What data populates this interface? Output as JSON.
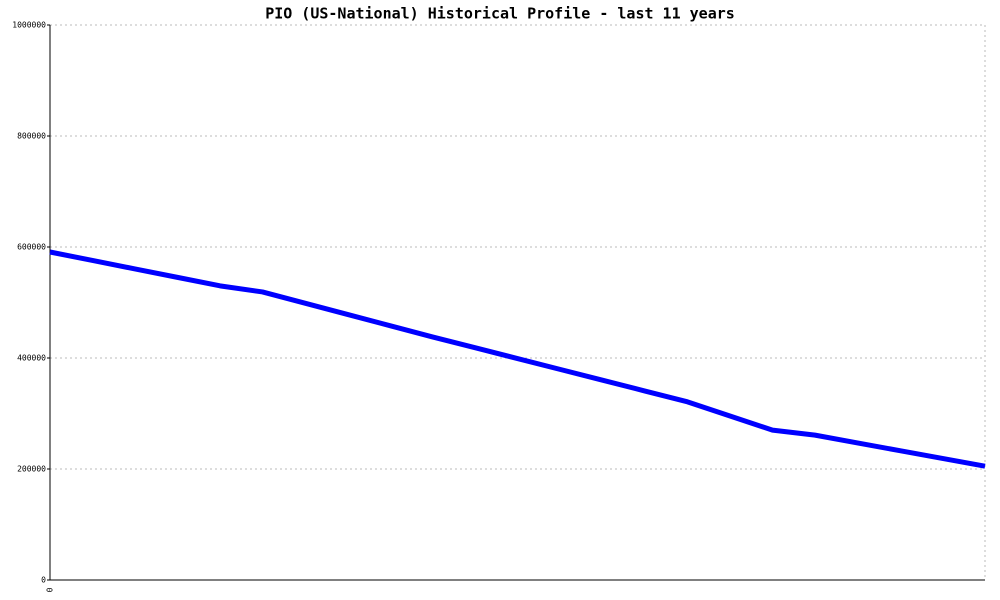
{
  "chart_data": {
    "type": "line",
    "title": "PIO (US-National) Historical Profile - last 11 years",
    "categories": [
      "0",
      null,
      null,
      null,
      null,
      null,
      null,
      null,
      null,
      null,
      null,
      null,
      null,
      null,
      null,
      null,
      null,
      null,
      null,
      null,
      null,
      null,
      null
    ],
    "series": [
      {
        "name": "PIO",
        "color": "#0000ff",
        "values": [
          591000,
          575750,
          560500,
          545250,
          530000,
          519000,
          498750,
          478500,
          458250,
          438000,
          418500,
          399000,
          379500,
          360000,
          340500,
          321000,
          295500,
          270000,
          261000,
          247000,
          233000,
          219000,
          205000
        ]
      }
    ],
    "ylim": [
      0,
      1000000
    ],
    "yticks": [
      0,
      200000,
      400000,
      600000,
      800000,
      1000000
    ],
    "grid": true
  }
}
